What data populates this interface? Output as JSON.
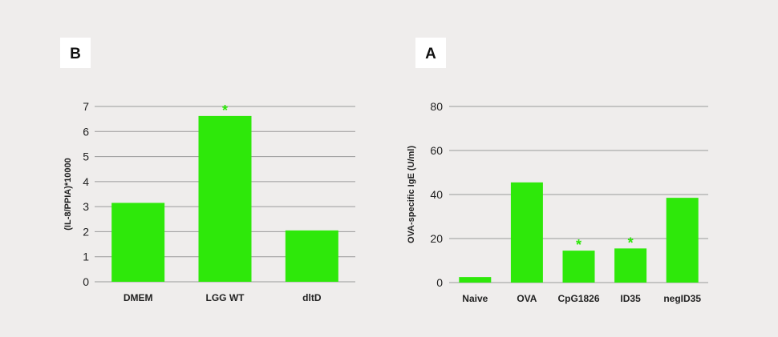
{
  "colors": {
    "background": "#efedec",
    "bar": "#2ee80a",
    "grid": "#9a9a9a",
    "significance": "#2ee80a",
    "label_box": "#ffffff"
  },
  "chart_data": [
    {
      "panel_label": "B",
      "type": "bar",
      "categories": [
        "DMEM",
        "LGG WT",
        "dltD"
      ],
      "values": [
        3.15,
        6.62,
        2.05
      ],
      "significance": [
        false,
        true,
        false
      ],
      "significance_symbol": "*",
      "xlabel": "",
      "ylabel": "(IL-8/PPIA)*10000",
      "ylim": [
        0,
        7
      ],
      "yticks": [
        0,
        1,
        2,
        3,
        4,
        5,
        6,
        7
      ],
      "grid": true,
      "legend": "none"
    },
    {
      "panel_label": "A",
      "type": "bar",
      "categories": [
        "Naive",
        "OVA",
        "CpG1826",
        "ID35",
        "negID35"
      ],
      "values": [
        2.5,
        45.5,
        14.5,
        15.5,
        38.5
      ],
      "significance": [
        false,
        false,
        true,
        true,
        false
      ],
      "significance_symbol": "*",
      "xlabel": "",
      "ylabel": "OVA-specific IgE (U/ml)",
      "ylim": [
        0,
        80
      ],
      "yticks": [
        0,
        20,
        40,
        60,
        80
      ],
      "grid": true,
      "legend": "none"
    }
  ]
}
